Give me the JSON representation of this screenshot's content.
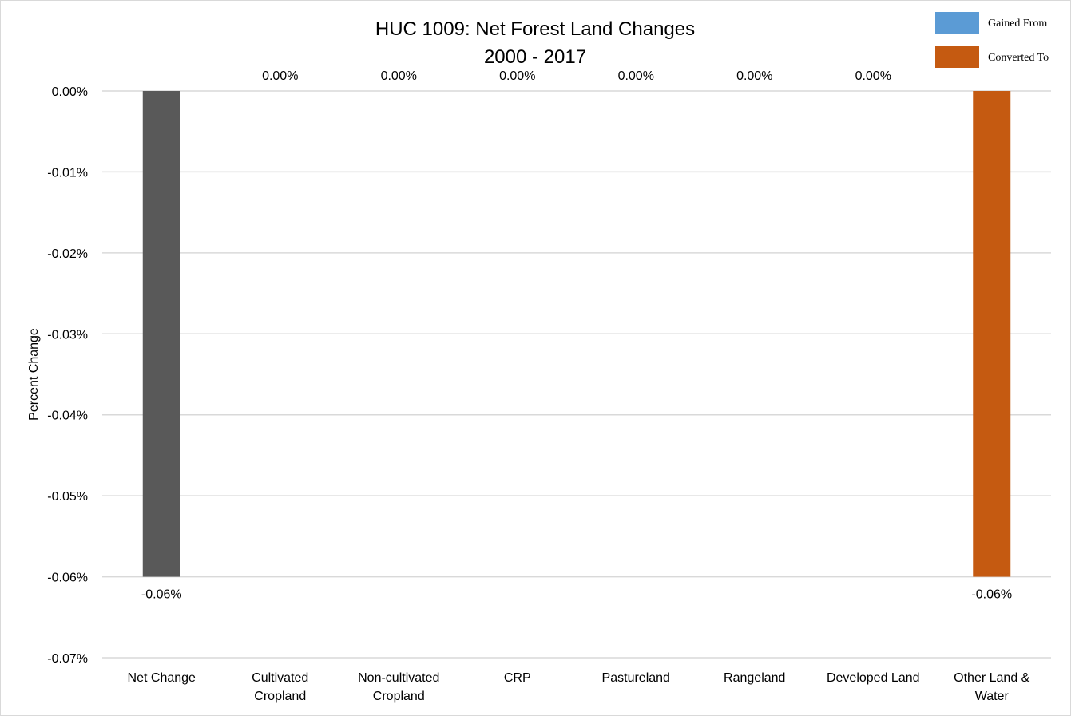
{
  "chart_data": {
    "type": "bar",
    "title": "HUC 1009: Net Forest Land Changes",
    "subtitle": "2000 - 2017",
    "ylabel": "Percent Change",
    "xlabel": "",
    "ylim": [
      -0.07,
      0.0
    ],
    "yticks": [
      0.0,
      -0.01,
      -0.02,
      -0.03,
      -0.04,
      -0.05,
      -0.06,
      -0.07
    ],
    "ytick_labels": [
      "0.00%",
      "-0.01%",
      "-0.02%",
      "-0.03%",
      "-0.04%",
      "-0.05%",
      "-0.06%",
      "-0.07%"
    ],
    "grid": true,
    "categories": [
      [
        "Net Change"
      ],
      [
        "Cultivated",
        "Cropland"
      ],
      [
        "Non-cultivated",
        "Cropland"
      ],
      [
        "CRP"
      ],
      [
        "Pastureland"
      ],
      [
        "Rangeland"
      ],
      [
        "Developed Land"
      ],
      [
        "Other Land &",
        "Water"
      ]
    ],
    "values": [
      -0.06,
      0.0,
      0.0,
      0.0,
      0.0,
      0.0,
      0.0,
      -0.06
    ],
    "data_labels": [
      "-0.06%",
      "0.00%",
      "0.00%",
      "0.00%",
      "0.00%",
      "0.00%",
      "0.00%",
      "-0.06%"
    ],
    "bar_colors": [
      "#595959",
      "#5b9bd5",
      "#5b9bd5",
      "#5b9bd5",
      "#5b9bd5",
      "#5b9bd5",
      "#5b9bd5",
      "#c55a11"
    ],
    "legend": {
      "placement": "top-right",
      "entries": [
        {
          "label": "Gained From",
          "color": "#5b9bd5"
        },
        {
          "label": "Converted To",
          "color": "#c55a11"
        }
      ]
    }
  }
}
